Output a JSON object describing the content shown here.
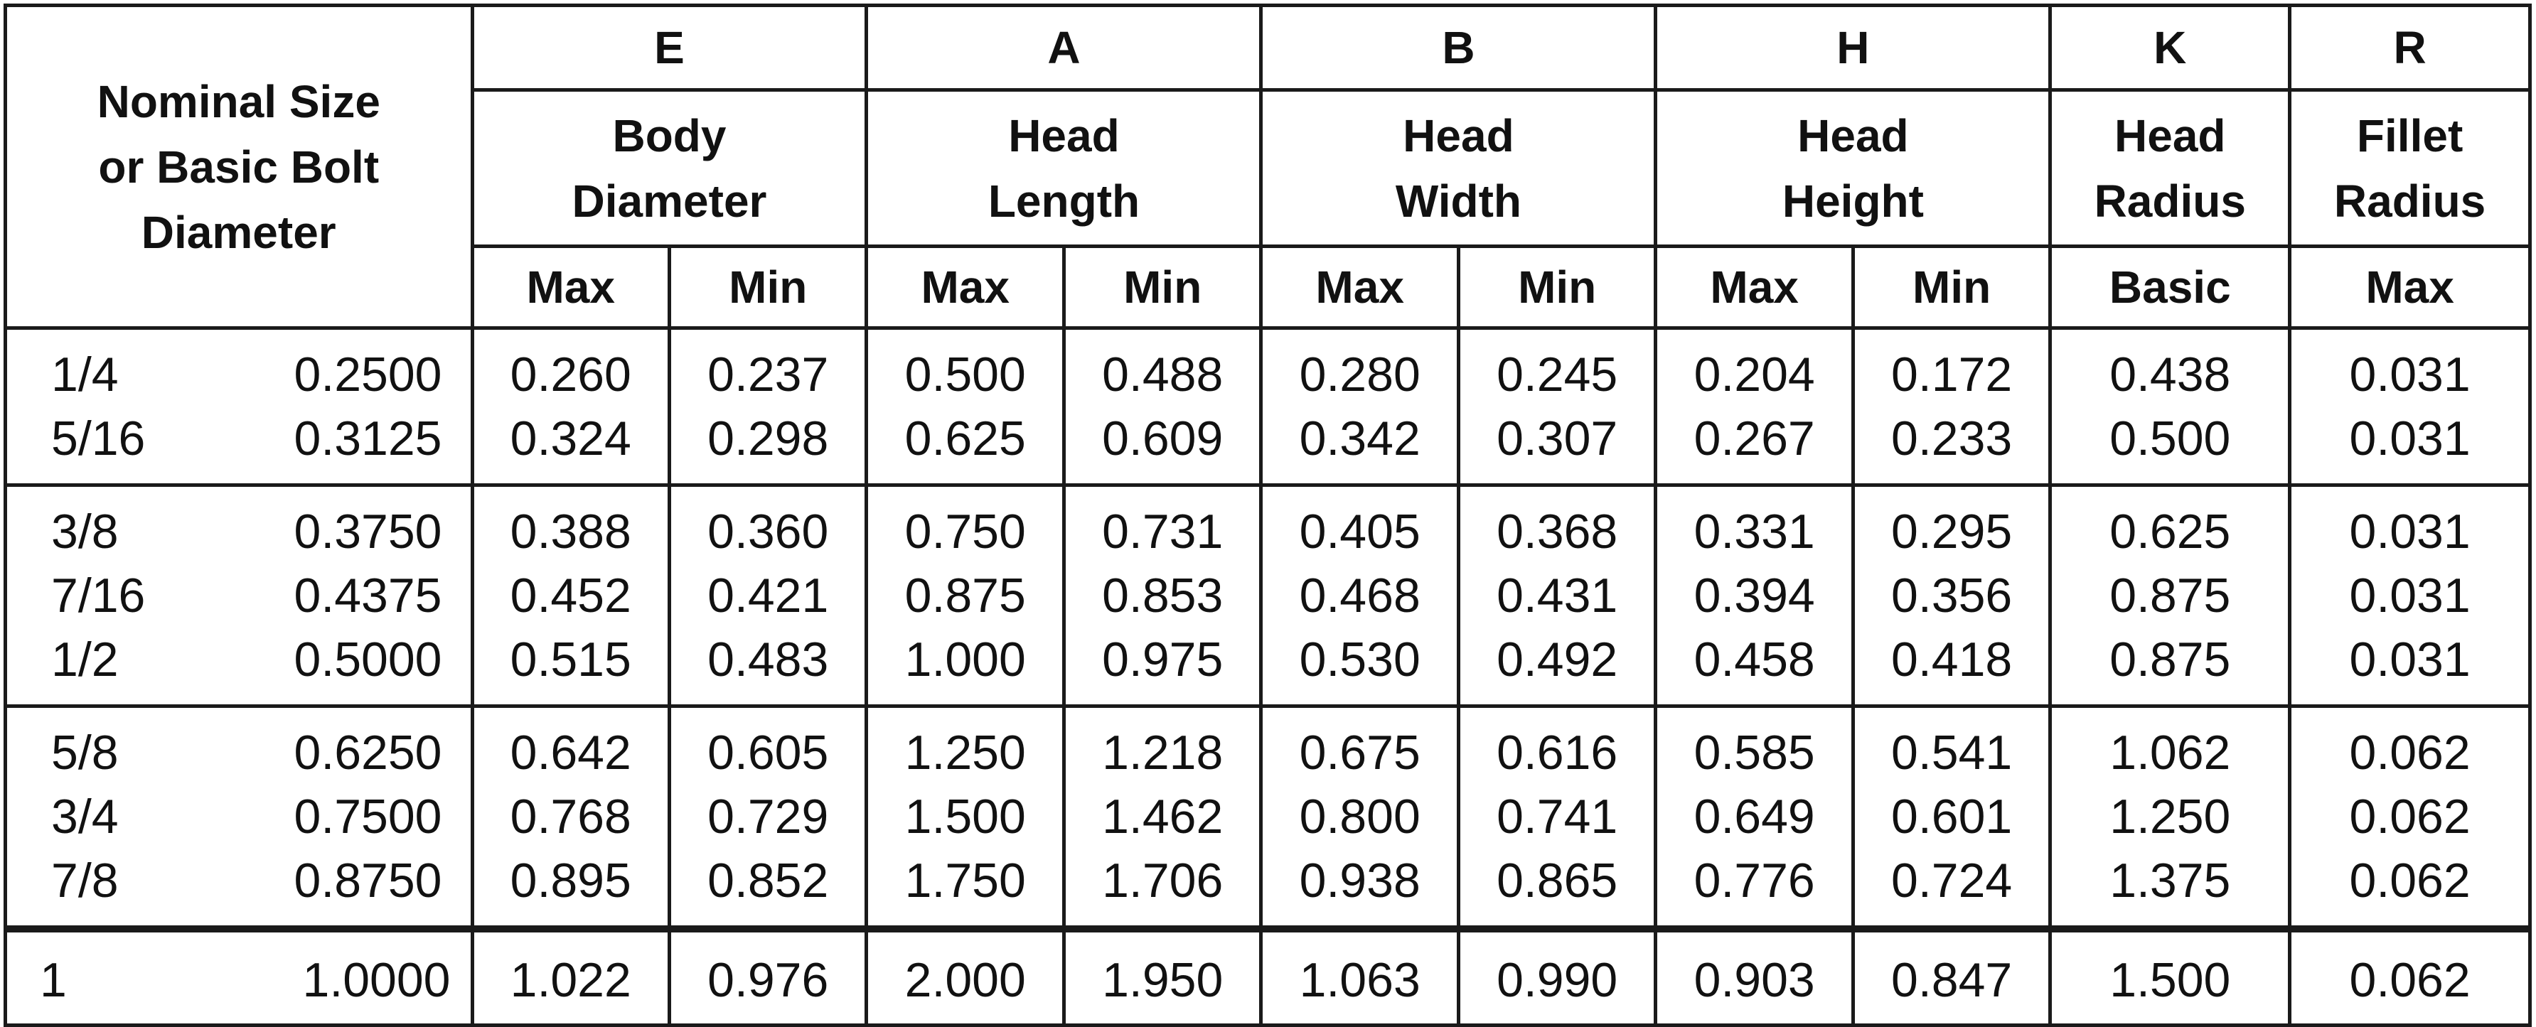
{
  "table": {
    "nominal_header_lines": [
      "Nominal Size",
      "or Basic Bolt",
      "Diameter"
    ],
    "columns": [
      {
        "letter": "E",
        "name_lines": [
          "Body",
          "Diameter"
        ],
        "subs": [
          "Max",
          "Min"
        ]
      },
      {
        "letter": "A",
        "name_lines": [
          "Head",
          "Length"
        ],
        "subs": [
          "Max",
          "Min"
        ]
      },
      {
        "letter": "B",
        "name_lines": [
          "Head",
          "Width"
        ],
        "subs": [
          "Max",
          "Min"
        ]
      },
      {
        "letter": "H",
        "name_lines": [
          "Head",
          "Height"
        ],
        "subs": [
          "Max",
          "Min"
        ]
      },
      {
        "letter": "K",
        "name_lines": [
          "Head",
          "Radius"
        ],
        "subs": [
          "Basic"
        ]
      },
      {
        "letter": "R",
        "name_lines": [
          "Fillet",
          "Radius"
        ],
        "subs": [
          "Max"
        ]
      }
    ],
    "groups": [
      [
        [
          "1/4",
          "0.2500",
          "0.260",
          "0.237",
          "0.500",
          "0.488",
          "0.280",
          "0.245",
          "0.204",
          "0.172",
          "0.438",
          "0.031"
        ],
        [
          "5/16",
          "0.3125",
          "0.324",
          "0.298",
          "0.625",
          "0.609",
          "0.342",
          "0.307",
          "0.267",
          "0.233",
          "0.500",
          "0.031"
        ]
      ],
      [
        [
          "3/8",
          "0.3750",
          "0.388",
          "0.360",
          "0.750",
          "0.731",
          "0.405",
          "0.368",
          "0.331",
          "0.295",
          "0.625",
          "0.031"
        ],
        [
          "7/16",
          "0.4375",
          "0.452",
          "0.421",
          "0.875",
          "0.853",
          "0.468",
          "0.431",
          "0.394",
          "0.356",
          "0.875",
          "0.031"
        ],
        [
          "1/2",
          "0.5000",
          "0.515",
          "0.483",
          "1.000",
          "0.975",
          "0.530",
          "0.492",
          "0.458",
          "0.418",
          "0.875",
          "0.031"
        ]
      ],
      [
        [
          "5/8",
          "0.6250",
          "0.642",
          "0.605",
          "1.250",
          "1.218",
          "0.675",
          "0.616",
          "0.585",
          "0.541",
          "1.062",
          "0.062"
        ],
        [
          "3/4",
          "0.7500",
          "0.768",
          "0.729",
          "1.500",
          "1.462",
          "0.800",
          "0.741",
          "0.649",
          "0.601",
          "1.250",
          "0.062"
        ],
        [
          "7/8",
          "0.8750",
          "0.895",
          "0.852",
          "1.750",
          "1.706",
          "0.938",
          "0.865",
          "0.776",
          "0.724",
          "1.375",
          "0.062"
        ]
      ],
      [
        [
          "1",
          "1.0000",
          "1.022",
          "0.976",
          "2.000",
          "1.950",
          "1.063",
          "0.990",
          "0.903",
          "0.847",
          "1.500",
          "0.062"
        ]
      ]
    ]
  }
}
